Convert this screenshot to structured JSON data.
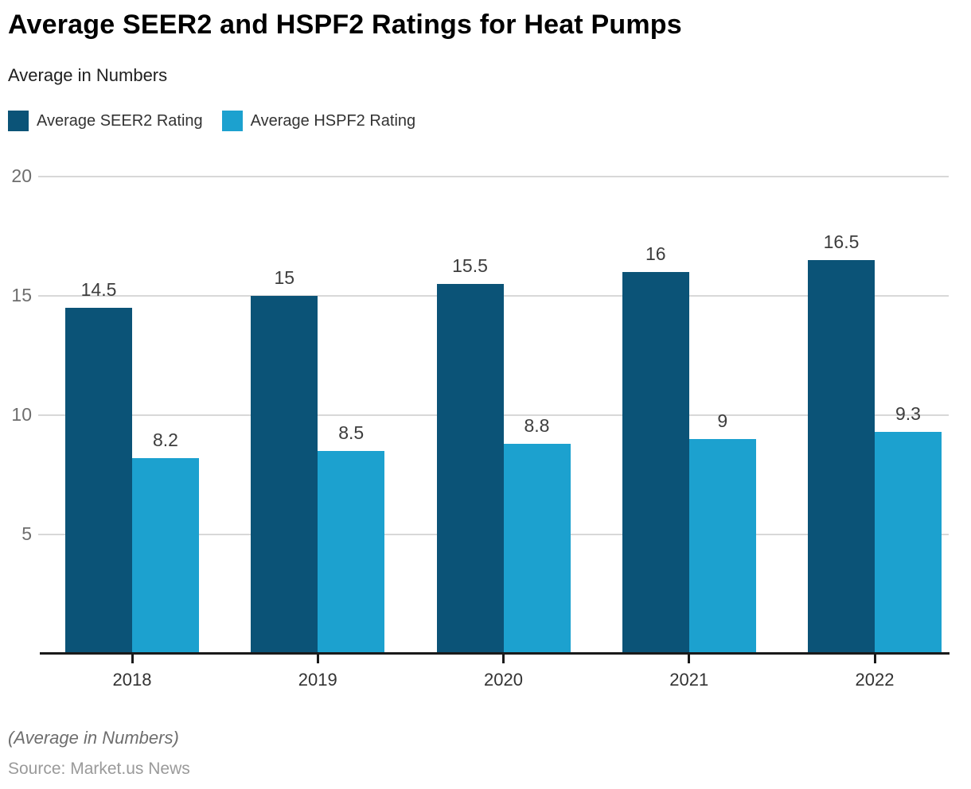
{
  "header": {
    "title": "Average SEER2 and HSPF2 Ratings for Heat Pumps",
    "subtitle": "Average in Numbers"
  },
  "chart_data": {
    "type": "bar",
    "title": "Average SEER2 and HSPF2 Ratings for Heat Pumps",
    "subtitle": "Average in Numbers",
    "categories": [
      "2018",
      "2019",
      "2020",
      "2021",
      "2022"
    ],
    "series": [
      {
        "name": "Average SEER2 Rating",
        "color": "#0B5377",
        "values": [
          14.5,
          15,
          15.5,
          16,
          16.5
        ]
      },
      {
        "name": "Average HSPF2 Rating",
        "color": "#1CA1CF",
        "values": [
          8.2,
          8.5,
          8.8,
          9,
          9.3
        ]
      }
    ],
    "xlabel": "",
    "ylabel": "",
    "ylim": [
      0,
      20
    ],
    "yticks": [
      5,
      10,
      15,
      20
    ],
    "grid": true,
    "legend_position": "top",
    "value_labels": true,
    "colors": {
      "grid": "#d8d8d8",
      "axis": "#1a1a1a",
      "ytick_text": "#6e6e6e",
      "xtick_text": "#333333",
      "value_text": "#3d3d3d"
    }
  },
  "footer": {
    "note": "(Average in Numbers)",
    "source": "Source: Market.us News"
  }
}
